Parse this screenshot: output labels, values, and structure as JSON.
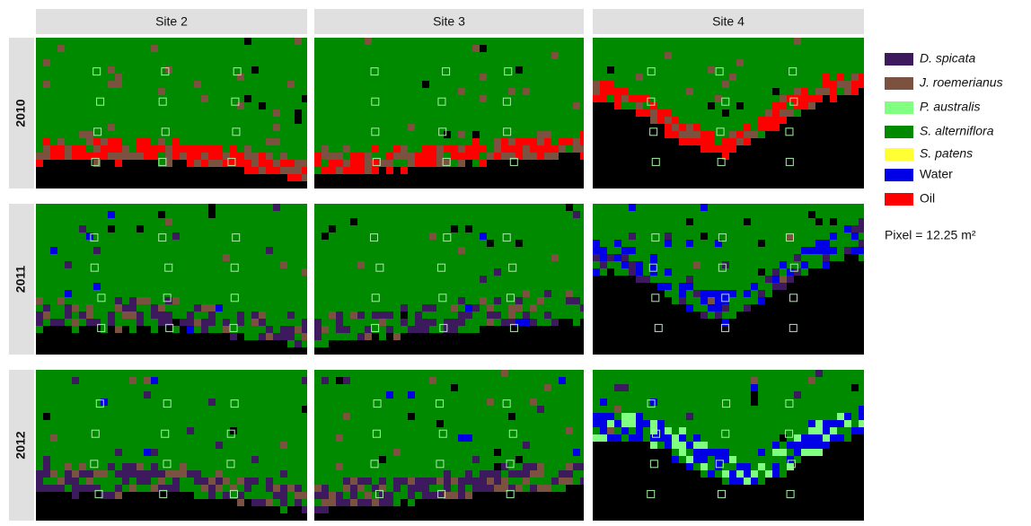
{
  "columns": [
    "Site 2",
    "Site 3",
    "Site 4"
  ],
  "rows": [
    "2010",
    "2011",
    "2012"
  ],
  "legend": [
    {
      "label": "D. spicata",
      "color": "#3d1a5e",
      "italic": true
    },
    {
      "label": "J. roemerianus",
      "color": "#7b5240",
      "italic": true
    },
    {
      "label": "P. australis",
      "color": "#80ff80",
      "italic": true
    },
    {
      "label": "S. alterniflora",
      "color": "#008a00",
      "italic": true
    },
    {
      "label": "S. patens",
      "color": "#ffff33",
      "italic": true
    },
    {
      "label": "Water",
      "color": "#0000e6",
      "italic": false
    },
    {
      "label": "Oil",
      "color": "#ff0000",
      "italic": false
    }
  ],
  "pixel_note": "Pixel = 12.25 m²"
}
